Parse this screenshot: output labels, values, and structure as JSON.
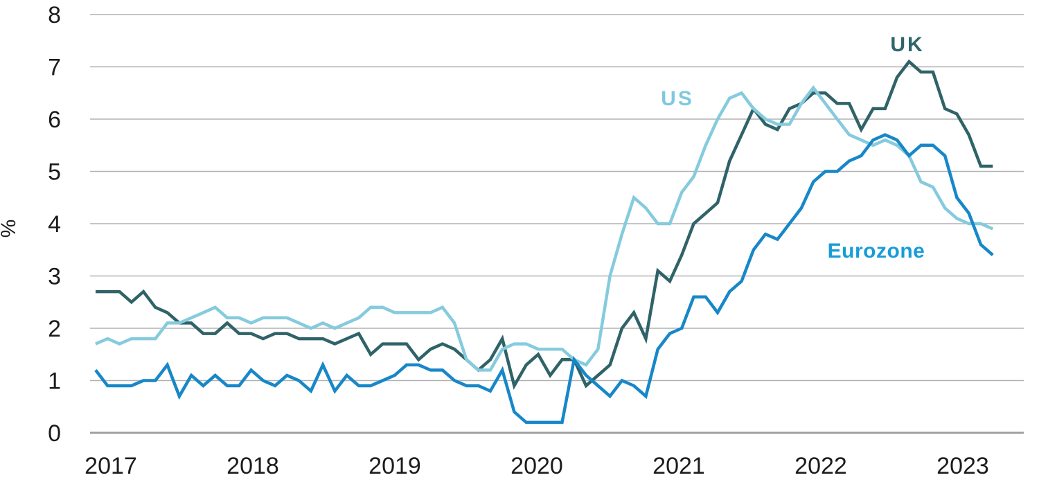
{
  "chart_data": {
    "type": "line",
    "ylabel": "%",
    "ylim": [
      0,
      8
    ],
    "yticks": [
      0,
      1,
      2,
      3,
      4,
      5,
      6,
      7,
      8
    ],
    "x_tick_labels": [
      "2017",
      "2018",
      "2019",
      "2020",
      "2021",
      "2022",
      "2023"
    ],
    "x_start": "2017-09",
    "x_interval": "month",
    "n_points": 76,
    "grid": "horizontal",
    "grid_color": "#b2b2b2",
    "axis_color": "#a0a0a0",
    "legend_position": "inline-labels",
    "series": [
      {
        "name": "UK",
        "line_color": "#2f6368",
        "label_color": "#2f666b",
        "values": [
          2.7,
          2.7,
          2.7,
          2.5,
          2.7,
          2.4,
          2.3,
          2.1,
          2.1,
          1.9,
          1.9,
          2.1,
          1.9,
          1.9,
          1.8,
          1.9,
          1.9,
          1.8,
          1.8,
          1.8,
          1.7,
          1.8,
          1.9,
          1.5,
          1.7,
          1.7,
          1.7,
          1.4,
          1.6,
          1.7,
          1.6,
          1.4,
          1.2,
          1.4,
          1.8,
          0.9,
          1.3,
          1.5,
          1.1,
          1.4,
          1.4,
          0.9,
          1.1,
          1.3,
          2.0,
          2.3,
          1.8,
          3.1,
          2.9,
          3.4,
          4.0,
          4.2,
          4.4,
          5.2,
          5.7,
          6.2,
          5.9,
          5.8,
          6.2,
          6.3,
          6.5,
          6.5,
          6.3,
          6.3,
          5.8,
          6.2,
          6.2,
          6.8,
          7.1,
          6.9,
          6.9,
          6.2,
          6.1,
          5.7,
          5.1,
          5.1
        ]
      },
      {
        "name": "US",
        "line_color": "#85cbdd",
        "label_color": "#7ec9e0",
        "values": [
          1.7,
          1.8,
          1.7,
          1.8,
          1.8,
          1.8,
          2.1,
          2.1,
          2.2,
          2.3,
          2.4,
          2.2,
          2.2,
          2.1,
          2.2,
          2.2,
          2.2,
          2.1,
          2.0,
          2.1,
          2.0,
          2.1,
          2.2,
          2.4,
          2.4,
          2.3,
          2.3,
          2.3,
          2.3,
          2.4,
          2.1,
          1.4,
          1.2,
          1.2,
          1.6,
          1.7,
          1.7,
          1.6,
          1.6,
          1.6,
          1.4,
          1.3,
          1.6,
          3.0,
          3.8,
          4.5,
          4.3,
          4.0,
          4.0,
          4.6,
          4.9,
          5.5,
          6.0,
          6.4,
          6.5,
          6.2,
          6.0,
          5.9,
          5.9,
          6.3,
          6.6,
          6.3,
          6.0,
          5.7,
          5.6,
          5.5,
          5.6,
          5.5,
          5.3,
          4.8,
          4.7,
          4.3,
          4.1,
          4.0,
          4.0,
          3.9
        ]
      },
      {
        "name": "Eurozone",
        "line_color": "#1787c8",
        "label_color": "#189cd8",
        "values": [
          1.2,
          0.9,
          0.9,
          0.9,
          1.0,
          1.0,
          1.3,
          0.7,
          1.1,
          0.9,
          1.1,
          0.9,
          0.9,
          1.2,
          1.0,
          0.9,
          1.1,
          1.0,
          0.8,
          1.3,
          0.8,
          1.1,
          0.9,
          0.9,
          1.0,
          1.1,
          1.3,
          1.3,
          1.2,
          1.2,
          1.0,
          0.9,
          0.9,
          0.8,
          1.2,
          0.4,
          0.2,
          0.2,
          0.2,
          0.2,
          1.4,
          1.1,
          0.9,
          0.7,
          1.0,
          0.9,
          0.7,
          1.6,
          1.9,
          2.0,
          2.6,
          2.6,
          2.3,
          2.7,
          2.9,
          3.5,
          3.8,
          3.7,
          4.0,
          4.3,
          4.8,
          5.0,
          5.0,
          5.2,
          5.3,
          5.6,
          5.7,
          5.6,
          5.3,
          5.5,
          5.5,
          5.3,
          4.5,
          4.2,
          3.6,
          3.4
        ]
      }
    ]
  }
}
